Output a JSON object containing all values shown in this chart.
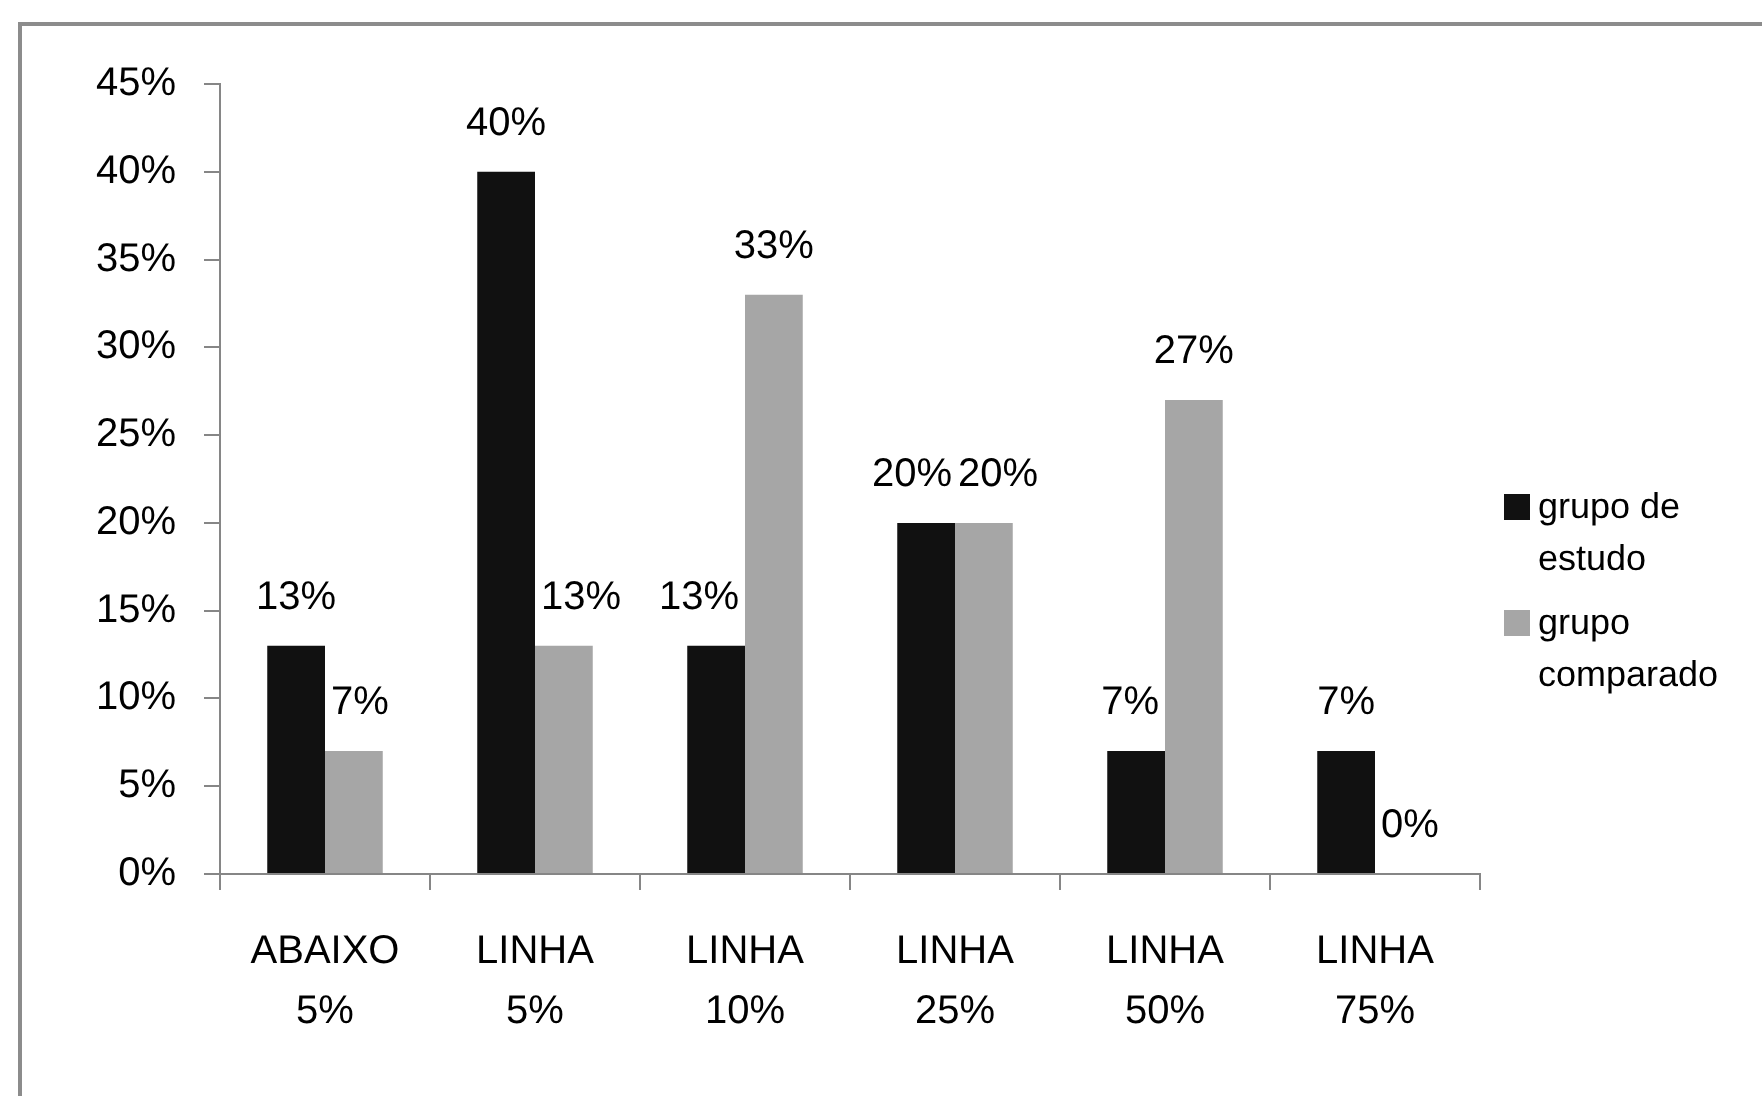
{
  "chart_data": {
    "type": "bar",
    "categories": [
      "ABAIXO 5%",
      "LINHA 5%",
      "LINHA 10%",
      "LINHA 25%",
      "LINHA 50%",
      "LINHA 75%"
    ],
    "series": [
      {
        "name": "grupo de estudo",
        "color": "#111111",
        "values": [
          13,
          40,
          13,
          20,
          7,
          7
        ],
        "value_labels": [
          "13%",
          "40%",
          "13%",
          "20%",
          "7%",
          "7%"
        ]
      },
      {
        "name": "grupo comparado",
        "color": "#a6a6a6",
        "values": [
          7,
          13,
          33,
          20,
          27,
          0
        ],
        "value_labels": [
          "7%",
          "13%",
          "33%",
          "20%",
          "27%",
          "0%"
        ]
      }
    ],
    "ylim": [
      0,
      45
    ],
    "yticks": [
      {
        "value": 0,
        "label": "0%"
      },
      {
        "value": 5,
        "label": "5%"
      },
      {
        "value": 10,
        "label": "10%"
      },
      {
        "value": 15,
        "label": "15%"
      },
      {
        "value": 20,
        "label": "20%"
      },
      {
        "value": 25,
        "label": "25%"
      },
      {
        "value": 30,
        "label": "30%"
      },
      {
        "value": 35,
        "label": "35%"
      },
      {
        "value": 40,
        "label": "40%"
      },
      {
        "value": 45,
        "label": "45%"
      }
    ],
    "grid": false,
    "legend": "right"
  }
}
